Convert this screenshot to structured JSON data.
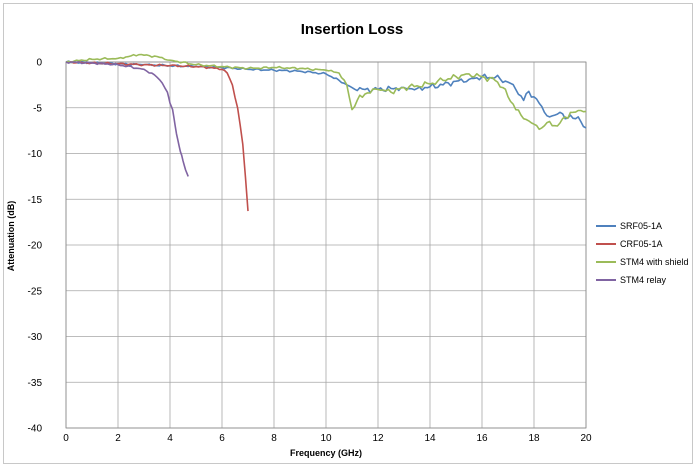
{
  "chart_data": {
    "type": "line",
    "title": "Insertion Loss",
    "xlabel": "Frequency (GHz)",
    "ylabel": "Attenuation (dB)",
    "xlim": [
      0,
      20
    ],
    "ylim": [
      -40,
      0
    ],
    "x_ticks": [
      "0",
      "2",
      "4",
      "6",
      "8",
      "10",
      "12",
      "14",
      "16",
      "18",
      "20"
    ],
    "y_ticks": [
      "0",
      "-5",
      "-10",
      "-15",
      "-20",
      "-25",
      "-30",
      "-35",
      "-40"
    ],
    "grid": true,
    "legend_position": "right",
    "series": [
      {
        "name": "SRF05-1A",
        "color": "#4f81bd",
        "x": [
          0,
          1,
          2,
          3,
          4,
          5,
          6,
          7,
          8,
          9,
          10,
          10.5,
          11,
          11.5,
          12,
          12.5,
          13,
          13.5,
          14,
          14.5,
          15,
          15.5,
          16,
          16.5,
          17,
          17.3,
          17.6,
          17.8,
          18,
          18.2,
          18.4,
          18.6,
          18.8,
          19,
          19.2,
          19.4,
          19.6,
          19.8,
          20
        ],
        "y": [
          0,
          -0.1,
          -0.2,
          -0.3,
          -0.4,
          -0.5,
          -0.6,
          -0.8,
          -0.9,
          -1.0,
          -1.3,
          -2.0,
          -2.8,
          -3.0,
          -3.0,
          -2.9,
          -2.8,
          -2.9,
          -2.7,
          -2.5,
          -2.1,
          -1.9,
          -1.6,
          -1.7,
          -2.2,
          -3.0,
          -4.2,
          -3.2,
          -3.8,
          -4.5,
          -5.5,
          -6.0,
          -5.8,
          -5.5,
          -6.2,
          -5.8,
          -6.2,
          -6.5,
          -7.2
        ]
      },
      {
        "name": "CRF05-1A",
        "color": "#c0504d",
        "x": [
          0,
          1,
          2,
          3,
          4,
          5,
          5.5,
          6,
          6.2,
          6.4,
          6.6,
          6.8,
          6.9,
          7.0
        ],
        "y": [
          0,
          -0.1,
          -0.2,
          -0.3,
          -0.4,
          -0.5,
          -0.6,
          -0.8,
          -1.2,
          -2.5,
          -5.0,
          -9.0,
          -12.5,
          -16.3
        ]
      },
      {
        "name": "STM4 with shield",
        "color": "#9bbb59",
        "x": [
          0,
          1,
          2,
          2.8,
          3.5,
          4,
          5,
          6,
          7,
          8,
          9,
          10,
          10.5,
          10.8,
          11.0,
          11.2,
          11.5,
          12,
          12.5,
          13,
          13.5,
          14,
          14.5,
          15,
          15.5,
          16,
          16.5,
          16.8,
          17,
          17.5,
          18,
          18.3,
          18.6,
          18.9,
          19.2,
          19.5,
          19.8,
          20
        ],
        "y": [
          0,
          0.3,
          0.4,
          0.8,
          0.6,
          0.2,
          -0.3,
          -0.5,
          -0.7,
          -0.6,
          -0.7,
          -0.9,
          -1.2,
          -2.5,
          -5.2,
          -4.2,
          -3.5,
          -3.0,
          -3.3,
          -2.8,
          -2.6,
          -2.4,
          -2.0,
          -1.6,
          -1.3,
          -1.6,
          -2.0,
          -2.8,
          -3.8,
          -5.8,
          -6.8,
          -7.2,
          -6.5,
          -7.0,
          -6.0,
          -5.5,
          -5.3,
          -5.4
        ]
      },
      {
        "name": "STM4 relay",
        "color": "#8064a2",
        "x": [
          0,
          1,
          2,
          3,
          3.4,
          3.7,
          3.9,
          4.0,
          4.1,
          4.2,
          4.3,
          4.4,
          4.5,
          4.6,
          4.7
        ],
        "y": [
          0,
          -0.1,
          -0.3,
          -0.8,
          -1.4,
          -2.3,
          -3.3,
          -4.5,
          -5.2,
          -7.0,
          -8.5,
          -9.8,
          -10.8,
          -11.8,
          -12.5
        ]
      }
    ]
  }
}
